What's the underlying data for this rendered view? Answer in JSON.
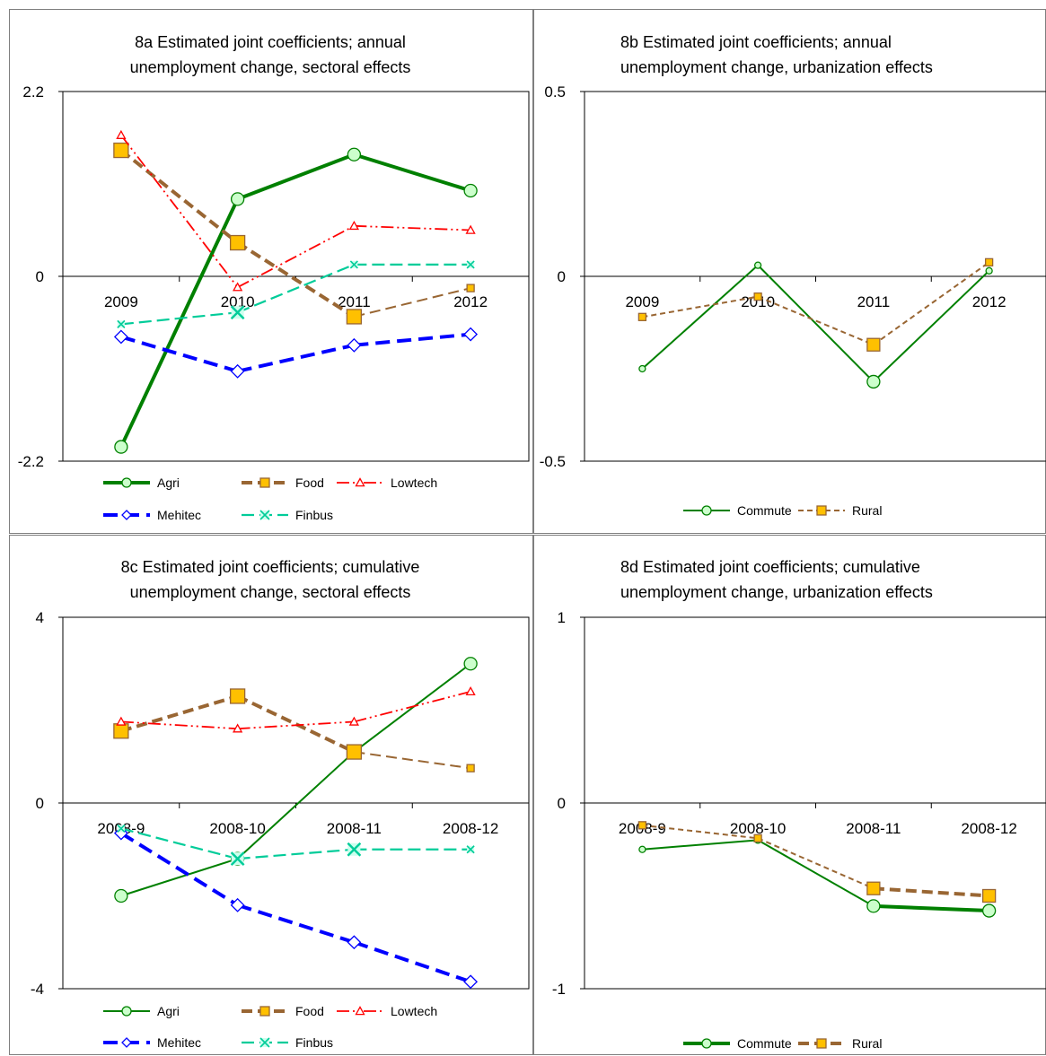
{
  "chart_data": [
    {
      "id": "8a",
      "type": "line",
      "title_lines": [
        "8a Estimated joint coefficients; annual",
        "unemployment change, sectoral effects"
      ],
      "x": [
        "2009",
        "2010",
        "2011",
        "2012"
      ],
      "ylim": [
        -2.2,
        2.2
      ],
      "yticks": [
        2.2,
        0,
        -2.2
      ],
      "yticklabels": [
        "2.2",
        "0",
        "-2.2"
      ],
      "grid": false,
      "legend_position": "bottom",
      "series": [
        {
          "name": "Agri",
          "values": [
            -2.03,
            0.92,
            1.45,
            1.02
          ],
          "color": "#008000",
          "width": 4,
          "dash": "",
          "marker": "circle",
          "marker_size": 14,
          "marker_fill": "#ccffcc"
        },
        {
          "name": "Food",
          "values": [
            1.5,
            0.4,
            -0.48,
            -0.14
          ],
          "color": "#996633",
          "width": 4,
          "dash": "12,6",
          "marker": "square",
          "marker_size": 16,
          "marker_fill": "#ffc000",
          "last_marker_size": 8,
          "last_segment_width": 2
        },
        {
          "name": "Lowtech",
          "values": [
            1.68,
            -0.13,
            0.6,
            0.55
          ],
          "color": "#ff0000",
          "width": 1.8,
          "dash": "14,4,2,4,2,4",
          "marker": "triangle",
          "marker_size": 9,
          "marker_fill": "#ffffff"
        },
        {
          "name": "Mehitec",
          "values": [
            -0.72,
            -1.13,
            -0.82,
            -0.69
          ],
          "color": "#0000ff",
          "width": 4,
          "dash": "16,8",
          "marker": "diamond",
          "marker_size": 14,
          "marker_fill": "#ffffff"
        },
        {
          "name": "Finbus",
          "values": [
            -0.57,
            -0.43,
            0.14,
            0.14
          ],
          "color": "#00cc99",
          "width": 2.2,
          "dash": "14,6",
          "marker": "x",
          "marker_size": 8,
          "marker_fill": "#ccffee",
          "marker_sizes": [
            8,
            14,
            8,
            8
          ]
        }
      ]
    },
    {
      "id": "8b",
      "type": "line",
      "title_lines": [
        "8b Estimated joint coefficients; annual",
        "unemployment change, urbanization effects"
      ],
      "x": [
        "2009",
        "2010",
        "2011",
        "2012"
      ],
      "ylim": [
        -0.5,
        0.5
      ],
      "yticks": [
        0.5,
        0,
        -0.5
      ],
      "yticklabels": [
        "0.5",
        "0",
        "-0.5"
      ],
      "grid": false,
      "legend_position": "bottom",
      "series": [
        {
          "name": "Commute",
          "values": [
            -0.25,
            0.03,
            -0.285,
            0.015
          ],
          "color": "#008000",
          "width": 2,
          "dash": "",
          "marker": "circle",
          "marker_size": 7,
          "marker_fill": "#ccffcc",
          "marker_sizes": [
            7,
            7,
            14,
            7
          ]
        },
        {
          "name": "Rural",
          "values": [
            -0.11,
            -0.055,
            -0.185,
            0.038
          ],
          "color": "#996633",
          "width": 2,
          "dash": "6,4",
          "marker": "square",
          "marker_size": 8,
          "marker_fill": "#ffc000",
          "marker_sizes": [
            8,
            8,
            14,
            8
          ]
        }
      ]
    },
    {
      "id": "8c",
      "type": "line",
      "title_lines": [
        "8c Estimated joint coefficients; cumulative",
        "unemployment change, sectoral effects"
      ],
      "x": [
        "2008-9",
        "2008-10",
        "2008-11",
        "2008-12"
      ],
      "ylim": [
        -4,
        4
      ],
      "yticks": [
        4,
        0,
        -4
      ],
      "yticklabels": [
        "4",
        "0",
        "-4"
      ],
      "grid": false,
      "legend_position": "bottom",
      "series": [
        {
          "name": "Agri",
          "values": [
            -2.0,
            -1.2,
            1.1,
            3.0
          ],
          "color": "#008000",
          "width": 2,
          "dash": "",
          "marker": "circle",
          "marker_size": 14,
          "marker_fill": "#ccffcc"
        },
        {
          "name": "Food",
          "values": [
            1.55,
            2.3,
            1.1,
            0.75
          ],
          "color": "#996633",
          "width": 4,
          "dash": "12,6",
          "marker": "square",
          "marker_size": 16,
          "marker_fill": "#ffc000",
          "last_marker_size": 8,
          "last_segment_width": 2
        },
        {
          "name": "Lowtech",
          "values": [
            1.75,
            1.6,
            1.75,
            2.4
          ],
          "color": "#ff0000",
          "width": 1.8,
          "dash": "14,4,2,4,2,4",
          "marker": "triangle",
          "marker_size": 9,
          "marker_fill": "#ffffff"
        },
        {
          "name": "Mehitec",
          "values": [
            -0.65,
            -2.2,
            -3.0,
            -3.85
          ],
          "color": "#0000ff",
          "width": 4,
          "dash": "16,8",
          "marker": "diamond",
          "marker_size": 14,
          "marker_fill": "#ffffff"
        },
        {
          "name": "Finbus",
          "values": [
            -0.55,
            -1.2,
            -1.0,
            -1.0
          ],
          "color": "#00cc99",
          "width": 2.2,
          "dash": "14,6",
          "marker": "x",
          "marker_size": 8,
          "marker_fill": "#ccffee",
          "marker_sizes": [
            8,
            14,
            14,
            8
          ]
        }
      ]
    },
    {
      "id": "8d",
      "type": "line",
      "title_lines": [
        "8d Estimated joint coefficients; cumulative",
        "unemployment change, urbanization effects"
      ],
      "x": [
        "2008-9",
        "2008-10",
        "2008-11",
        "2008-12"
      ],
      "ylim": [
        -1,
        1
      ],
      "yticks": [
        1,
        0,
        -1
      ],
      "yticklabels": [
        "1",
        "0",
        "-1"
      ],
      "grid": false,
      "legend_position": "bottom",
      "series": [
        {
          "name": "Commute",
          "values": [
            -0.25,
            -0.2,
            -0.555,
            -0.58
          ],
          "color": "#008000",
          "width": 2,
          "dash": "",
          "marker": "circle",
          "marker_size": 7,
          "marker_fill": "#ccffcc",
          "marker_sizes": [
            7,
            7,
            14,
            14
          ],
          "widths": [
            2,
            2,
            4
          ]
        },
        {
          "name": "Rural",
          "values": [
            -0.12,
            -0.19,
            -0.46,
            -0.5
          ],
          "color": "#996633",
          "width": 2,
          "dash": "6,4",
          "marker": "square",
          "marker_size": 8,
          "marker_fill": "#ffc000",
          "marker_sizes": [
            8,
            8,
            14,
            14
          ],
          "widths": [
            2,
            2,
            4
          ],
          "dashes": [
            "6,4",
            "6,4",
            "12,6"
          ]
        }
      ]
    }
  ]
}
